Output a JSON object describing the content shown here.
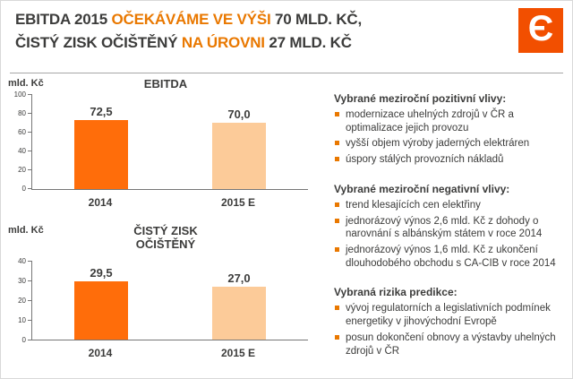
{
  "colors": {
    "accent": "#e97800",
    "bar_2014": "#ff6d0a",
    "bar_2015_e": "#fccb99",
    "logo_background": "#f24f00",
    "text": "#3c3c3b"
  },
  "logo": {
    "glyph": "Є"
  },
  "title": {
    "l1a": "EBITDA 2015 ",
    "l1b": "OČEKÁVÁME VE VÝŠI ",
    "l1c": "70 MLD. KČ,",
    "l2a": "ČISTÝ ZISK OČIŠTĚNÝ ",
    "l2b": "NA ÚROVNI ",
    "l2c": "27 MLD. KČ"
  },
  "chart_data": [
    {
      "type": "bar",
      "title": "EBITDA",
      "ylabel": "mld. Kč",
      "categories": [
        "2014",
        "2015 E"
      ],
      "values": [
        72.5,
        70.0
      ],
      "value_labels": [
        "72,5",
        "70,0"
      ],
      "ylim": [
        0,
        100
      ],
      "yticks": [
        0,
        20,
        40,
        60,
        80,
        100
      ],
      "grid": false,
      "legend": "none"
    },
    {
      "type": "bar",
      "title": "ČISTÝ ZISK\nOČIŠTĚNÝ",
      "ylabel": "mld. Kč",
      "categories": [
        "2014",
        "2015 E"
      ],
      "values": [
        29.5,
        27.0
      ],
      "value_labels": [
        "29,5",
        "27,0"
      ],
      "ylim": [
        0,
        40
      ],
      "yticks": [
        0,
        10,
        20,
        30,
        40
      ],
      "grid": false,
      "legend": "none"
    }
  ],
  "sections": [
    {
      "heading": "Vybrané meziroční pozitivní vlivy:",
      "items": [
        "modernizace uhelných zdrojů v ČR a optimalizace jejich provozu",
        "vyšší objem výroby jaderných elektráren",
        "úspory stálých provozních nákladů"
      ]
    },
    {
      "heading": "Vybrané meziroční negativní vlivy:",
      "items": [
        "trend klesajících cen elektřiny",
        "jednorázový výnos 2,6 mld. Kč z dohody o narovnání s albánským státem v roce 2014",
        "jednorázový výnos 1,6 mld. Kč z ukončení dlouhodobého obchodu s CA-CIB v roce 2014"
      ]
    },
    {
      "heading": "Vybraná rizika predikce:",
      "items": [
        "vývoj regulatorních a legislativních podmínek energetiky v jihovýchodní Evropě",
        "posun dokončení obnovy a výstavby uhelných zdrojů v ČR"
      ]
    }
  ]
}
